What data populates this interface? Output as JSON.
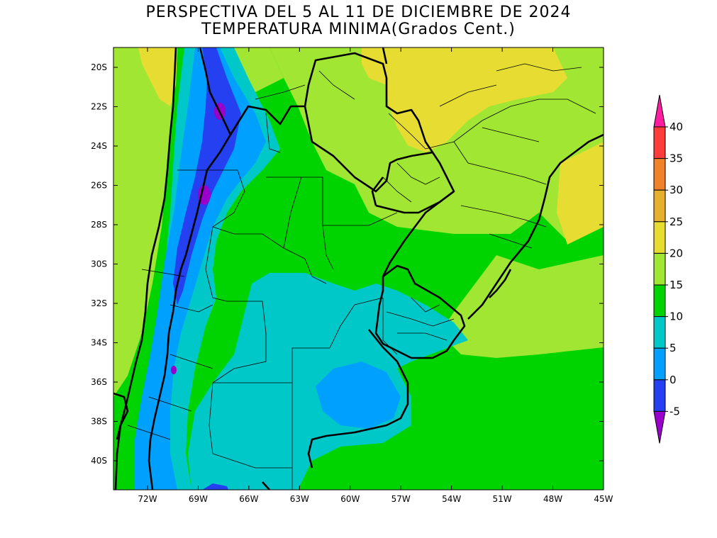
{
  "title_line1": "PERSPECTIVA DEL 5 AL 11 DE DICIEMBRE DE 2024",
  "title_line2": "TEMPERATURA MINIMA(Grados Cent.)",
  "lat_labels": [
    "20S",
    "22S",
    "24S",
    "26S",
    "28S",
    "30S",
    "32S",
    "34S",
    "36S",
    "38S",
    "40S"
  ],
  "lon_labels": [
    "72W",
    "69W",
    "66W",
    "63W",
    "60W",
    "57W",
    "54W",
    "51W",
    "48W",
    "45W"
  ],
  "colorbar": {
    "labels": [
      "-5",
      "0",
      "5",
      "10",
      "15",
      "20",
      "25",
      "30",
      "35",
      "40"
    ],
    "colors": [
      "#9900cc",
      "#2440f0",
      "#00a0ff",
      "#00c8c8",
      "#00d400",
      "#a0e632",
      "#e6dc32",
      "#e6af2d",
      "#f08228",
      "#ff3c3c",
      "#ff1ea0"
    ]
  },
  "fill_colors": {
    "neg5": "#2440f0",
    "zero": "#00a0ff",
    "five": "#00c8c8",
    "ten": "#00d400",
    "fifteen": "#a0e632",
    "twenty": "#e6dc32",
    "below_neg5": "#9900cc"
  }
}
